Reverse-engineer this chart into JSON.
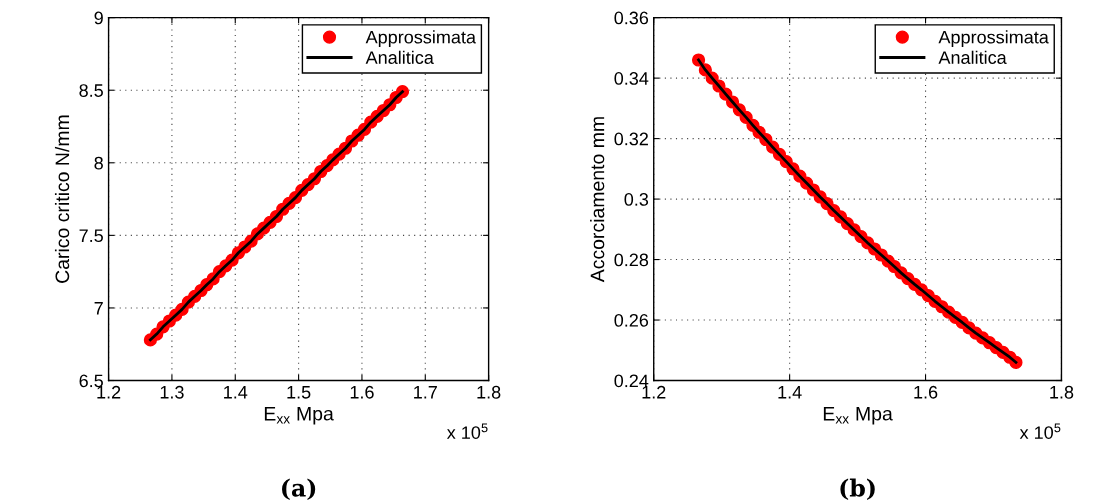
{
  "chart_data": [
    {
      "type": "scatter",
      "xlabel": "E$_{xx}$ Mpa",
      "ylabel": "Carico critico N/mm",
      "annotations": [
        "x 10$^{5}$",
        "(a)"
      ],
      "x": [
        1.266,
        1.276,
        1.286,
        1.296,
        1.306,
        1.316,
        1.326,
        1.336,
        1.346,
        1.355,
        1.365,
        1.375,
        1.385,
        1.395,
        1.405,
        1.415,
        1.425,
        1.435,
        1.445,
        1.455,
        1.465,
        1.475,
        1.485,
        1.495,
        1.505,
        1.515,
        1.525,
        1.535,
        1.545,
        1.554,
        1.564,
        1.574,
        1.584,
        1.594,
        1.604,
        1.614,
        1.624,
        1.634,
        1.644,
        1.654,
        1.664
      ],
      "series": [
        {
          "name": "Approssimata",
          "color": "#ff0000",
          "marker": "circle",
          "values": [
            6.78,
            6.82,
            6.87,
            6.91,
            6.95,
            6.99,
            7.04,
            7.08,
            7.12,
            7.16,
            7.2,
            7.25,
            7.29,
            7.33,
            7.38,
            7.42,
            7.46,
            7.51,
            7.55,
            7.59,
            7.63,
            7.68,
            7.72,
            7.76,
            7.81,
            7.85,
            7.89,
            7.94,
            7.98,
            8.02,
            8.06,
            8.1,
            8.15,
            8.19,
            8.23,
            8.28,
            8.32,
            8.36,
            8.4,
            8.45,
            8.49
          ]
        },
        {
          "name": "Analitica",
          "type": "line",
          "color": "#000000",
          "line_style": "solid",
          "values": [
            6.78,
            6.82,
            6.87,
            6.91,
            6.95,
            6.99,
            7.04,
            7.08,
            7.12,
            7.16,
            7.2,
            7.25,
            7.29,
            7.33,
            7.38,
            7.42,
            7.46,
            7.51,
            7.55,
            7.59,
            7.63,
            7.68,
            7.72,
            7.76,
            7.81,
            7.85,
            7.89,
            7.94,
            7.98,
            8.02,
            8.06,
            8.1,
            8.15,
            8.19,
            8.23,
            8.28,
            8.32,
            8.36,
            8.4,
            8.45,
            8.49
          ]
        }
      ],
      "xlim": [
        1.2,
        1.8
      ],
      "xticks": [
        1.2,
        1.3,
        1.4,
        1.5,
        1.6,
        1.7,
        1.8
      ],
      "ylim": [
        6.5,
        9
      ],
      "yticks": [
        6.5,
        7,
        7.5,
        8,
        8.5,
        9
      ],
      "grid": true,
      "legend": "top right"
    },
    {
      "type": "scatter",
      "xlabel": "E$_{xx}$ Mpa",
      "ylabel": "Accorciamento mm",
      "annotations": [
        "x 10$^{5}$",
        "(b)"
      ],
      "x": [
        1.266,
        1.276,
        1.286,
        1.296,
        1.306,
        1.316,
        1.326,
        1.336,
        1.346,
        1.355,
        1.365,
        1.375,
        1.385,
        1.395,
        1.405,
        1.415,
        1.425,
        1.435,
        1.445,
        1.455,
        1.465,
        1.475,
        1.485,
        1.495,
        1.505,
        1.515,
        1.525,
        1.535,
        1.545,
        1.554,
        1.564,
        1.574,
        1.584,
        1.594,
        1.604,
        1.614,
        1.624,
        1.634,
        1.644,
        1.654,
        1.664,
        1.674,
        1.684,
        1.694,
        1.704,
        1.714,
        1.724,
        1.733
      ],
      "series": [
        {
          "name": "Approssimata",
          "color": "#ff0000",
          "marker": "circle",
          "values": [
            0.346,
            0.3427,
            0.34,
            0.3374,
            0.3347,
            0.3321,
            0.3295,
            0.327,
            0.3244,
            0.3221,
            0.3197,
            0.3172,
            0.3148,
            0.3124,
            0.31,
            0.3076,
            0.3053,
            0.303,
            0.3007,
            0.2985,
            0.2962,
            0.2941,
            0.2919,
            0.2898,
            0.2876,
            0.2855,
            0.2835,
            0.2815,
            0.2795,
            0.2777,
            0.2756,
            0.2737,
            0.2718,
            0.27,
            0.2681,
            0.2662,
            0.2644,
            0.2626,
            0.2609,
            0.2592,
            0.2574,
            0.2557,
            0.2541,
            0.2525,
            0.2509,
            0.2493,
            0.2477,
            0.246
          ]
        },
        {
          "name": "Analitica",
          "type": "line",
          "color": "#000000",
          "line_style": "solid",
          "values": [
            0.346,
            0.3427,
            0.34,
            0.3374,
            0.3347,
            0.3321,
            0.3295,
            0.327,
            0.3244,
            0.3221,
            0.3197,
            0.3172,
            0.3148,
            0.3124,
            0.31,
            0.3076,
            0.3053,
            0.303,
            0.3007,
            0.2985,
            0.2962,
            0.2941,
            0.2919,
            0.2898,
            0.2876,
            0.2855,
            0.2835,
            0.2815,
            0.2795,
            0.2777,
            0.2756,
            0.2737,
            0.2718,
            0.27,
            0.2681,
            0.2662,
            0.2644,
            0.2626,
            0.2609,
            0.2592,
            0.2574,
            0.2557,
            0.2541,
            0.2525,
            0.2509,
            0.2493,
            0.2477,
            0.246
          ]
        }
      ],
      "xlim": [
        1.2,
        1.8
      ],
      "xticks": [
        1.2,
        1.4,
        1.6,
        1.8
      ],
      "ylim": [
        0.24,
        0.36
      ],
      "yticks": [
        0.24,
        0.26,
        0.28,
        0.3,
        0.32,
        0.34,
        0.36
      ],
      "grid": true,
      "legend": "top right"
    }
  ]
}
